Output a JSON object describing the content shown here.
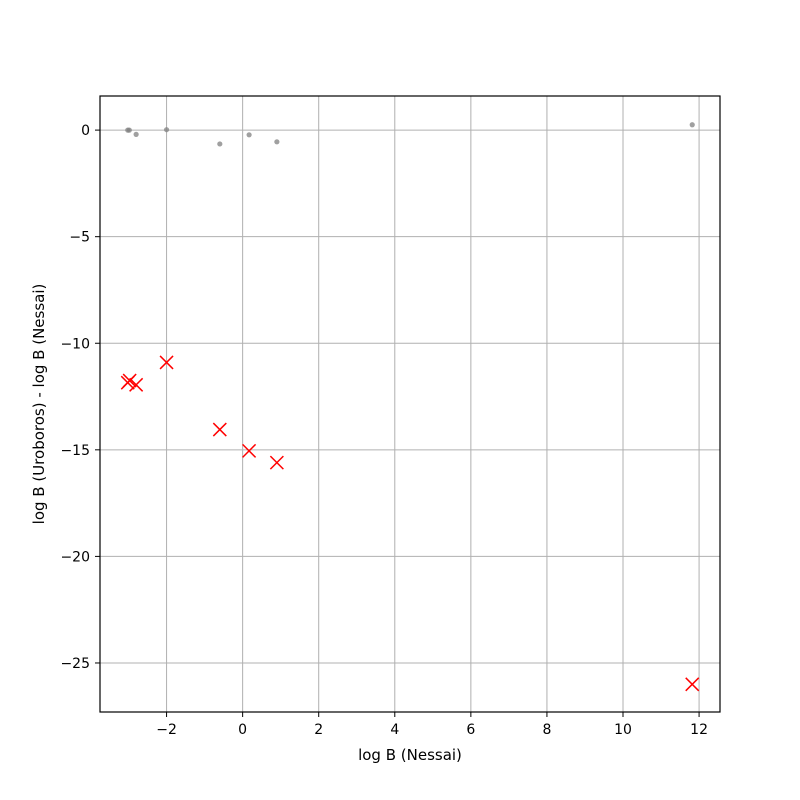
{
  "chart_data": {
    "type": "scatter",
    "title": "",
    "xlabel": "log B (Nessai)",
    "ylabel": "log B (Uroboros) - log B (Nessai)",
    "xlim": [
      -3.75,
      12.55
    ],
    "ylim": [
      -27.3,
      1.6
    ],
    "xticks": [
      -2,
      0,
      2,
      4,
      6,
      8,
      10,
      12
    ],
    "yticks": [
      0,
      -5,
      -10,
      -15,
      -20,
      -25
    ],
    "grid": true,
    "legend": null,
    "series": [
      {
        "marker": "dot",
        "color": "#808080",
        "points": [
          {
            "x": -3.02,
            "y": 0.0
          },
          {
            "x": -2.98,
            "y": 0.0
          },
          {
            "x": -2.8,
            "y": -0.2
          },
          {
            "x": -2.0,
            "y": 0.02
          },
          {
            "x": -0.6,
            "y": -0.65
          },
          {
            "x": 0.17,
            "y": -0.22
          },
          {
            "x": 0.9,
            "y": -0.55
          },
          {
            "x": 11.82,
            "y": 0.25
          }
        ]
      },
      {
        "marker": "x",
        "color": "#ff0000",
        "points": [
          {
            "x": -3.02,
            "y": -11.85
          },
          {
            "x": -2.97,
            "y": -11.75
          },
          {
            "x": -2.8,
            "y": -11.95
          },
          {
            "x": -2.0,
            "y": -10.9
          },
          {
            "x": -0.6,
            "y": -14.05
          },
          {
            "x": 0.17,
            "y": -15.05
          },
          {
            "x": 0.9,
            "y": -15.6
          },
          {
            "x": 11.82,
            "y": -26.0
          }
        ]
      }
    ]
  }
}
